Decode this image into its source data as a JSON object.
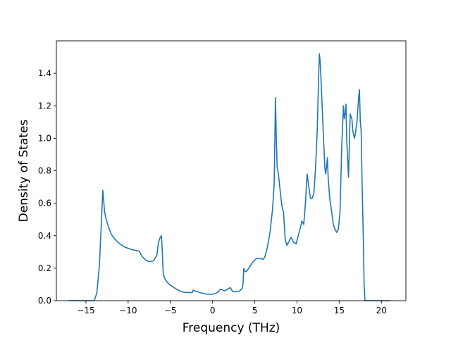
{
  "chart_data": {
    "type": "line",
    "title": "",
    "xlabel": "Frequency (THz)",
    "ylabel": "Density of States",
    "xlim": [
      -18.5,
      22.9
    ],
    "ylim": [
      0.0,
      1.6
    ],
    "grid": false,
    "xticks": [
      -15,
      -10,
      -5,
      0,
      5,
      10,
      15,
      20
    ],
    "yticks": [
      0.0,
      0.2,
      0.4,
      0.6,
      0.8,
      1.0,
      1.2,
      1.4
    ],
    "xtick_labels": [
      "−15",
      "−10",
      "−5",
      "0",
      "5",
      "10",
      "15",
      "20"
    ],
    "ytick_labels": [
      "0.0",
      "0.2",
      "0.4",
      "0.6",
      "0.8",
      "1.0",
      "1.2",
      "1.4"
    ],
    "series": [
      {
        "color": "#1f77b4",
        "x": [
          -17,
          -14.0,
          -13.7,
          -13.4,
          -13.2,
          -13.0,
          -12.9,
          -12.8,
          -12.6,
          -12.3,
          -12.0,
          -11.6,
          -11.0,
          -10.4,
          -9.6,
          -8.7,
          -8.3,
          -7.9,
          -7.5,
          -7.0,
          -6.6,
          -6.4,
          -6.2,
          -6.05,
          -5.95,
          -5.85,
          -5.7,
          -5.4,
          -5.0,
          -4.4,
          -3.7,
          -3.1,
          -2.4,
          -2.3,
          -2.1,
          -1.5,
          -0.7,
          0.0,
          0.4,
          0.7,
          0.9,
          1.1,
          1.4,
          1.6,
          1.9,
          2.1,
          2.4,
          2.8,
          3.2,
          3.5,
          3.6,
          3.7,
          3.8,
          3.9,
          4.1,
          4.4,
          4.8,
          5.2,
          5.6,
          6.0,
          6.2,
          6.5,
          6.8,
          7.1,
          7.3,
          7.45,
          7.55,
          7.65,
          7.8,
          8.0,
          8.2,
          8.3,
          8.4,
          8.6,
          8.8,
          9.1,
          9.3,
          9.6,
          9.9,
          10.3,
          10.6,
          10.8,
          11.0,
          11.2,
          11.4,
          11.6,
          11.8,
          12.0,
          12.2,
          12.4,
          12.55,
          12.65,
          12.75,
          12.9,
          13.1,
          13.3,
          13.4,
          13.5,
          13.6,
          13.7,
          13.9,
          14.1,
          14.3,
          14.5,
          14.7,
          14.9,
          15.1,
          15.3,
          15.5,
          15.6,
          15.7,
          15.8,
          15.9,
          16.1,
          16.3,
          16.5,
          16.6,
          16.8,
          16.9,
          17.1,
          17.3,
          17.4,
          17.5,
          17.6,
          17.7,
          17.85,
          17.95,
          18.05,
          18.3,
          21
        ],
        "y": [
          0.0,
          0.0,
          0.05,
          0.22,
          0.45,
          0.68,
          0.62,
          0.55,
          0.5,
          0.45,
          0.41,
          0.38,
          0.35,
          0.33,
          0.315,
          0.305,
          0.27,
          0.25,
          0.24,
          0.245,
          0.28,
          0.36,
          0.39,
          0.4,
          0.3,
          0.17,
          0.14,
          0.115,
          0.095,
          0.075,
          0.055,
          0.05,
          0.05,
          0.065,
          0.06,
          0.05,
          0.04,
          0.04,
          0.045,
          0.055,
          0.07,
          0.068,
          0.06,
          0.065,
          0.075,
          0.08,
          0.055,
          0.055,
          0.06,
          0.075,
          0.1,
          0.2,
          0.185,
          0.178,
          0.185,
          0.21,
          0.24,
          0.26,
          0.26,
          0.255,
          0.27,
          0.33,
          0.42,
          0.56,
          0.72,
          1.25,
          1.0,
          0.82,
          0.78,
          0.68,
          0.59,
          0.56,
          0.55,
          0.38,
          0.34,
          0.37,
          0.39,
          0.36,
          0.35,
          0.43,
          0.49,
          0.47,
          0.6,
          0.78,
          0.7,
          0.63,
          0.63,
          0.66,
          0.82,
          1.05,
          1.35,
          1.52,
          1.47,
          1.3,
          1.05,
          0.82,
          0.78,
          0.82,
          0.88,
          0.75,
          0.62,
          0.55,
          0.47,
          0.44,
          0.42,
          0.44,
          0.55,
          0.95,
          1.2,
          1.12,
          1.15,
          1.21,
          0.98,
          0.76,
          1.15,
          1.12,
          1.05,
          1.0,
          1.02,
          1.1,
          1.25,
          1.3,
          1.1,
          1.05,
          0.75,
          0.4,
          0.1,
          0.0,
          0.0,
          0.0
        ]
      }
    ]
  }
}
